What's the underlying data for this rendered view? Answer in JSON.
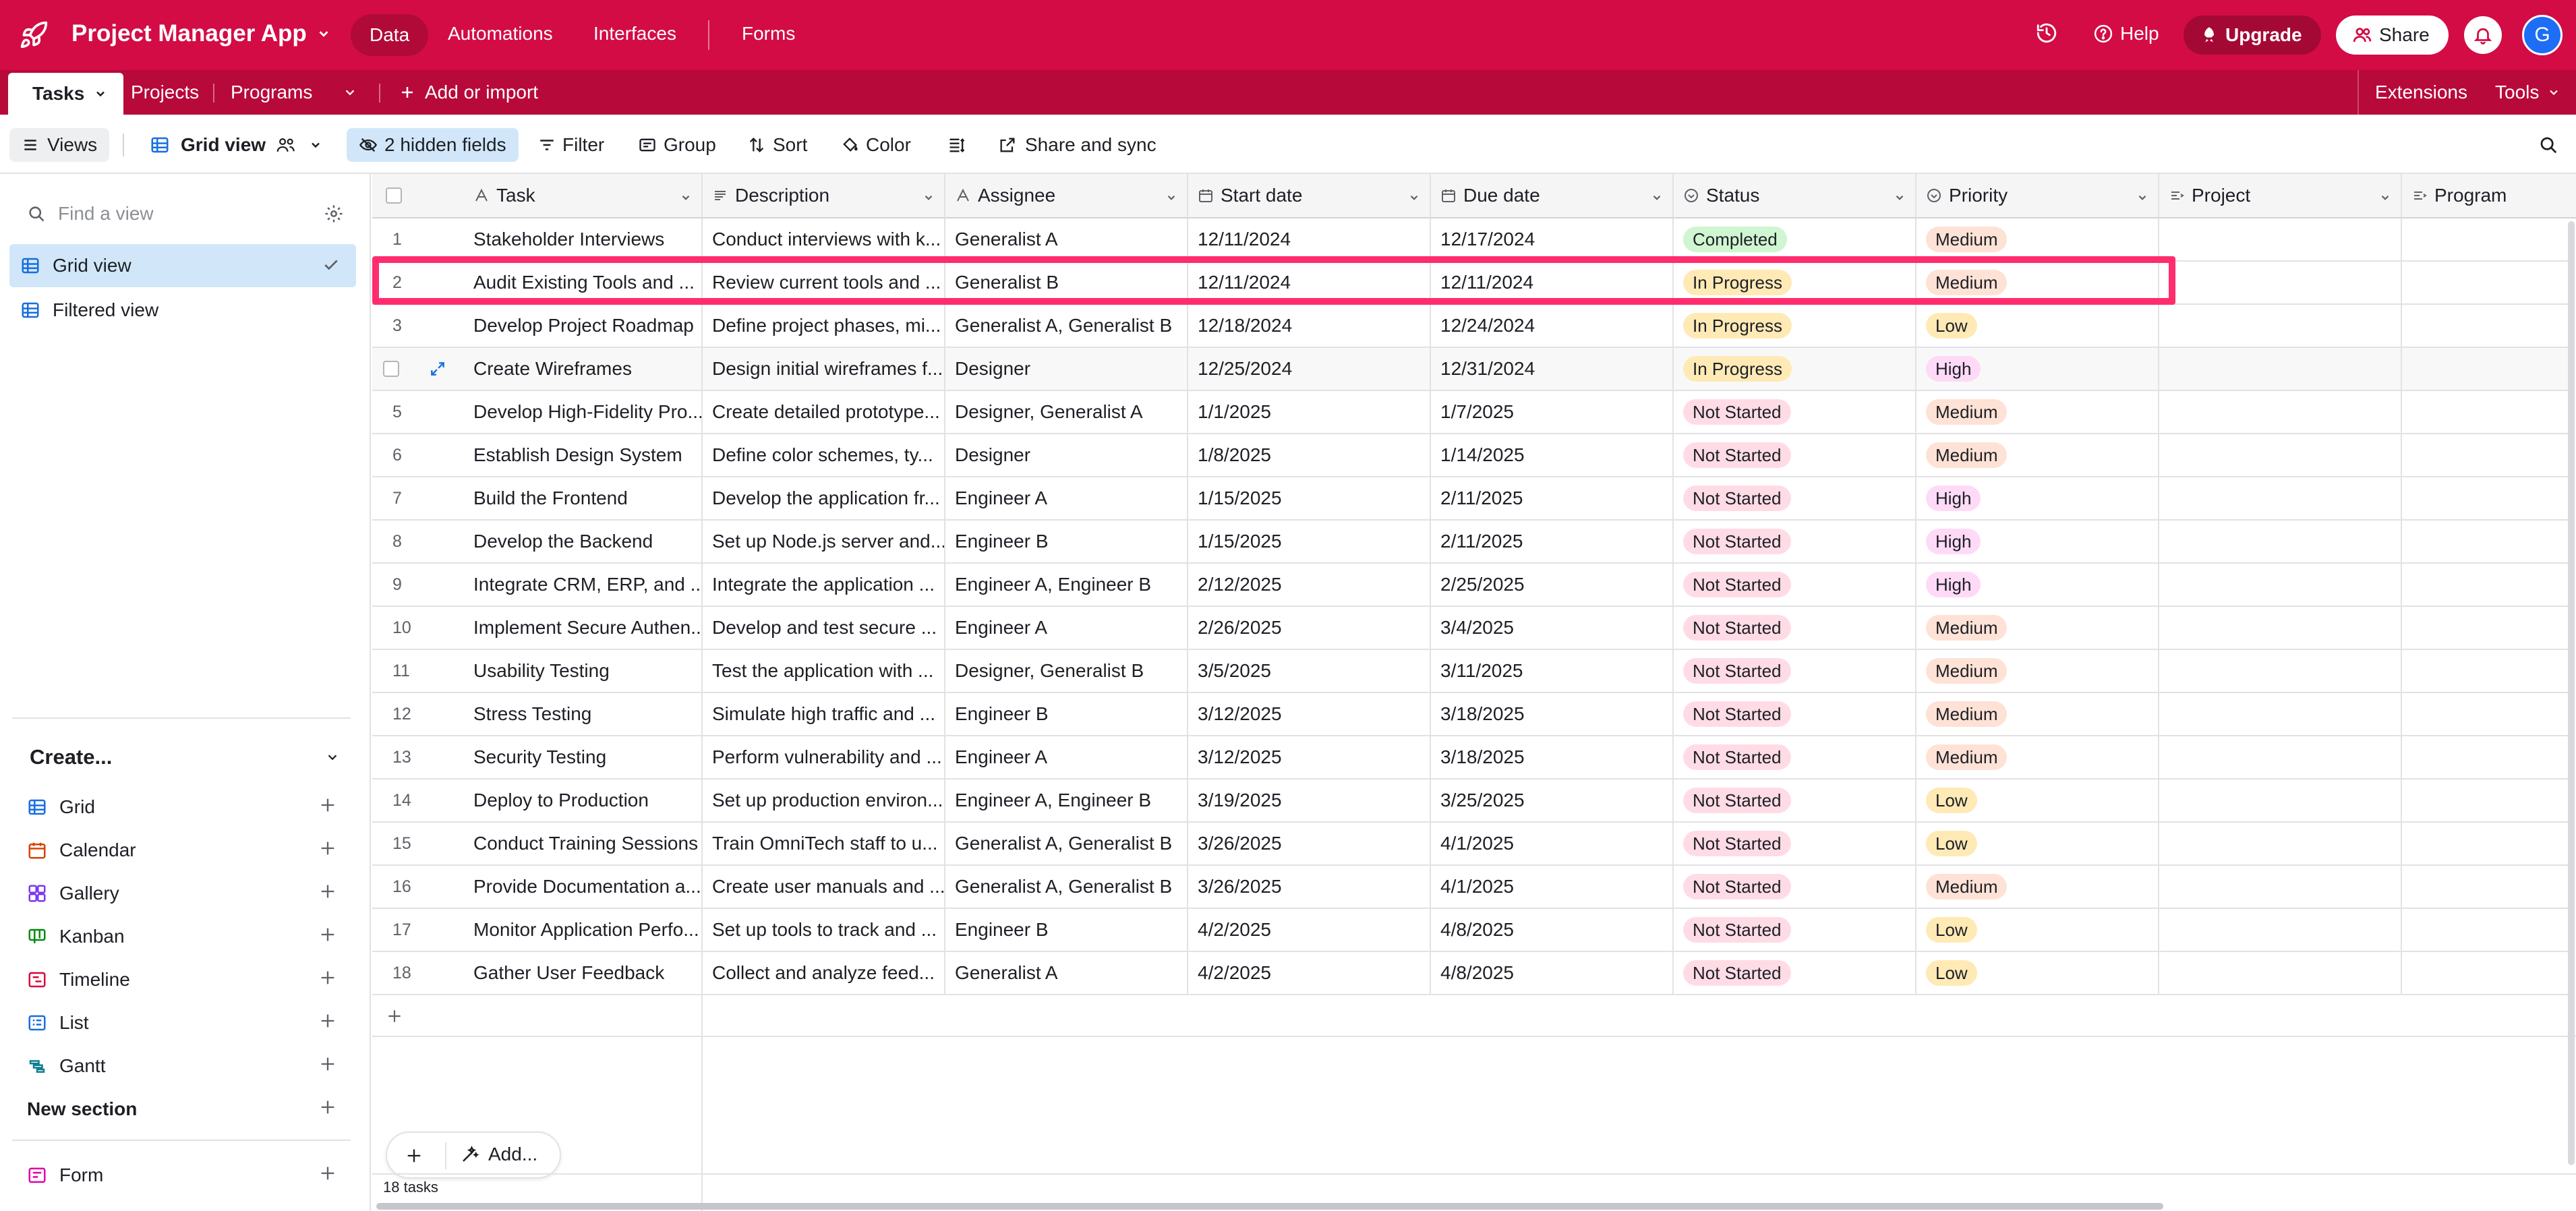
{
  "app": {
    "name": "Project Manager App",
    "nav": [
      "Data",
      "Automations",
      "Interfaces",
      "Forms"
    ],
    "help_label": "Help",
    "upgrade_label": "Upgrade",
    "share_label": "Share",
    "avatar_initial": "G",
    "brand_color": "#d30c45"
  },
  "tables": {
    "tabs": [
      "Tasks",
      "Projects",
      "Programs"
    ],
    "add_label": "Add or import",
    "extensions_label": "Extensions",
    "tools_label": "Tools"
  },
  "viewbar": {
    "views_label": "Views",
    "current_view": "Grid view",
    "hidden_fields": "2 hidden fields",
    "filter": "Filter",
    "group": "Group",
    "sort": "Sort",
    "color": "Color",
    "share_sync": "Share and sync"
  },
  "sidebar": {
    "find_placeholder": "Find a view",
    "views": [
      {
        "label": "Grid view",
        "selected": true
      },
      {
        "label": "Filtered view",
        "selected": false
      }
    ],
    "create_heading": "Create...",
    "create_items": [
      {
        "label": "Grid",
        "icon": "grid-icon"
      },
      {
        "label": "Calendar",
        "icon": "calendar-icon"
      },
      {
        "label": "Gallery",
        "icon": "gallery-icon"
      },
      {
        "label": "Kanban",
        "icon": "kanban-icon"
      },
      {
        "label": "Timeline",
        "icon": "timeline-icon"
      },
      {
        "label": "List",
        "icon": "list-icon"
      },
      {
        "label": "Gantt",
        "icon": "gantt-icon"
      }
    ],
    "new_section": "New section",
    "form_label": "Form"
  },
  "grid": {
    "columns": [
      "Task",
      "Description",
      "Assignee",
      "Start date",
      "Due date",
      "Status",
      "Priority",
      "Project",
      "Program"
    ],
    "rows": [
      {
        "n": "1",
        "task": "Stakeholder Interviews",
        "desc": "Conduct interviews with k...",
        "assignee": "Generalist A",
        "start": "12/11/2024",
        "due": "12/17/2024",
        "status": "Completed",
        "priority": "Medium"
      },
      {
        "n": "2",
        "task": "Audit Existing Tools and ...",
        "desc": "Review current tools and ...",
        "assignee": "Generalist B",
        "start": "12/11/2024",
        "due": "12/11/2024",
        "status": "In Progress",
        "priority": "Medium"
      },
      {
        "n": "3",
        "task": "Develop Project Roadmap",
        "desc": "Define project phases, mi...",
        "assignee": "Generalist A, Generalist B",
        "start": "12/18/2024",
        "due": "12/24/2024",
        "status": "In Progress",
        "priority": "Low"
      },
      {
        "n": "",
        "task": "Create Wireframes",
        "desc": "Design initial wireframes f...",
        "assignee": "Designer",
        "start": "12/25/2024",
        "due": "12/31/2024",
        "status": "In Progress",
        "priority": "High"
      },
      {
        "n": "5",
        "task": "Develop High-Fidelity Pro...",
        "desc": "Create detailed prototype...",
        "assignee": "Designer, Generalist A",
        "start": "1/1/2025",
        "due": "1/7/2025",
        "status": "Not Started",
        "priority": "Medium"
      },
      {
        "n": "6",
        "task": "Establish Design System",
        "desc": "Define color schemes, ty...",
        "assignee": "Designer",
        "start": "1/8/2025",
        "due": "1/14/2025",
        "status": "Not Started",
        "priority": "Medium"
      },
      {
        "n": "7",
        "task": "Build the Frontend",
        "desc": "Develop the application fr...",
        "assignee": "Engineer A",
        "start": "1/15/2025",
        "due": "2/11/2025",
        "status": "Not Started",
        "priority": "High"
      },
      {
        "n": "8",
        "task": "Develop the Backend",
        "desc": "Set up Node.js server and...",
        "assignee": "Engineer B",
        "start": "1/15/2025",
        "due": "2/11/2025",
        "status": "Not Started",
        "priority": "High"
      },
      {
        "n": "9",
        "task": "Integrate CRM, ERP, and ...",
        "desc": "Integrate the application ...",
        "assignee": "Engineer A, Engineer B",
        "start": "2/12/2025",
        "due": "2/25/2025",
        "status": "Not Started",
        "priority": "High"
      },
      {
        "n": "10",
        "task": "Implement Secure Authen...",
        "desc": "Develop and test secure ...",
        "assignee": "Engineer A",
        "start": "2/26/2025",
        "due": "3/4/2025",
        "status": "Not Started",
        "priority": "Medium"
      },
      {
        "n": "11",
        "task": "Usability Testing",
        "desc": "Test the application with ...",
        "assignee": "Designer, Generalist B",
        "start": "3/5/2025",
        "due": "3/11/2025",
        "status": "Not Started",
        "priority": "Medium"
      },
      {
        "n": "12",
        "task": "Stress Testing",
        "desc": "Simulate high traffic and ...",
        "assignee": "Engineer B",
        "start": "3/12/2025",
        "due": "3/18/2025",
        "status": "Not Started",
        "priority": "Medium"
      },
      {
        "n": "13",
        "task": "Security Testing",
        "desc": "Perform vulnerability and ...",
        "assignee": "Engineer A",
        "start": "3/12/2025",
        "due": "3/18/2025",
        "status": "Not Started",
        "priority": "Medium"
      },
      {
        "n": "14",
        "task": "Deploy to Production",
        "desc": "Set up production environ...",
        "assignee": "Engineer A, Engineer B",
        "start": "3/19/2025",
        "due": "3/25/2025",
        "status": "Not Started",
        "priority": "Low"
      },
      {
        "n": "15",
        "task": "Conduct Training Sessions",
        "desc": "Train OmniTech staff to u...",
        "assignee": "Generalist A, Generalist B",
        "start": "3/26/2025",
        "due": "4/1/2025",
        "status": "Not Started",
        "priority": "Low"
      },
      {
        "n": "16",
        "task": "Provide Documentation a...",
        "desc": "Create user manuals and ...",
        "assignee": "Generalist A, Generalist B",
        "start": "3/26/2025",
        "due": "4/1/2025",
        "status": "Not Started",
        "priority": "Medium"
      },
      {
        "n": "17",
        "task": "Monitor Application Perfo...",
        "desc": "Set up tools to track and ...",
        "assignee": "Engineer B",
        "start": "4/2/2025",
        "due": "4/8/2025",
        "status": "Not Started",
        "priority": "Low"
      },
      {
        "n": "18",
        "task": "Gather User Feedback",
        "desc": "Collect and analyze feed...",
        "assignee": "Generalist A",
        "start": "4/2/2025",
        "due": "4/8/2025",
        "status": "Not Started",
        "priority": "Low"
      }
    ],
    "add_label": "Add...",
    "record_count": "18 tasks"
  }
}
